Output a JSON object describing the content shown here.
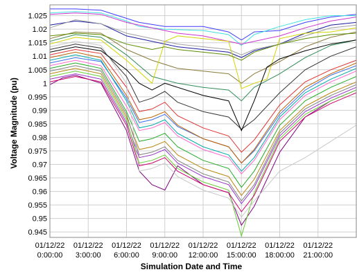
{
  "chart_data": {
    "type": "line",
    "xlabel": "Simulation Date and Time",
    "ylabel": "Voltage Magnitude (pu)",
    "x_ticks": [
      {
        "hour": 0,
        "date": "01/12/22",
        "time": "0:00:00"
      },
      {
        "hour": 3,
        "date": "01/12/22",
        "time": "3:00:00"
      },
      {
        "hour": 6,
        "date": "01/12/22",
        "time": "6:00:00"
      },
      {
        "hour": 9,
        "date": "01/12/22",
        "time": "9:00:00"
      },
      {
        "hour": 12,
        "date": "01/12/22",
        "time": "12:00:00"
      },
      {
        "hour": 15,
        "date": "01/12/22",
        "time": "15:00:00"
      },
      {
        "hour": 18,
        "date": "01/12/22",
        "time": "18:00:00"
      },
      {
        "hour": 21,
        "date": "01/12/22",
        "time": "21:00:00"
      }
    ],
    "xlim_hours": [
      0,
      24
    ],
    "y_ticks": [
      "0.945",
      "0.95",
      "0.955",
      "0.96",
      "0.965",
      "0.97",
      "0.975",
      "0.98",
      "0.985",
      "0.99",
      "0.995",
      "1",
      "1.005",
      "1.01",
      "1.015",
      "1.02",
      "1.025"
    ],
    "ylim": [
      0.943,
      1.029
    ],
    "grid": true,
    "x_unit": "hours",
    "series": [
      {
        "color": "#3d3dff",
        "x": [
          0,
          2,
          4,
          6,
          7,
          9,
          12,
          14,
          15,
          16,
          18,
          20,
          22,
          24
        ],
        "y": [
          1.0275,
          1.0275,
          1.027,
          1.024,
          1.0225,
          1.021,
          1.021,
          1.019,
          1.016,
          1.019,
          1.0195,
          1.0225,
          1.0245,
          1.0255
        ]
      },
      {
        "color": "#40e0e0",
        "x": [
          0,
          2,
          4,
          6,
          7,
          9,
          12,
          14,
          15,
          16,
          18,
          20,
          22,
          24
        ],
        "y": [
          1.026,
          1.0265,
          1.026,
          1.023,
          1.021,
          1.02,
          1.0195,
          1.018,
          1.014,
          1.018,
          1.021,
          1.0235,
          1.025,
          1.025
        ]
      },
      {
        "color": "#cc33cc",
        "x": [
          0,
          2,
          4,
          6,
          8,
          10,
          12,
          14,
          15,
          16,
          18,
          20,
          22,
          24
        ],
        "y": [
          1.0255,
          1.026,
          1.0255,
          1.0225,
          1.0205,
          1.0185,
          1.0175,
          1.0155,
          1.0145,
          1.0155,
          1.0175,
          1.0205,
          1.023,
          1.0245
        ]
      },
      {
        "color": "#1a1aa0",
        "x": [
          0,
          2,
          4,
          6,
          8,
          10,
          12,
          14,
          15,
          16,
          18,
          20,
          22,
          24
        ],
        "y": [
          1.0215,
          1.023,
          1.022,
          1.0175,
          1.0155,
          1.0135,
          1.0125,
          1.0115,
          1.0095,
          1.012,
          1.0145,
          1.0185,
          1.0215,
          1.0225
        ]
      },
      {
        "color": "#a0a0a0",
        "x": [
          0,
          2,
          4,
          6,
          8,
          10,
          12,
          14,
          15,
          16,
          18,
          20,
          22,
          24
        ],
        "y": [
          1.0205,
          1.0235,
          1.022,
          1.0185,
          1.0165,
          1.0145,
          1.0135,
          1.0125,
          1.0105,
          1.0125,
          1.0145,
          1.0175,
          1.0205,
          1.0215
        ]
      },
      {
        "color": "#8b7a3a",
        "x": [
          0,
          2,
          4,
          6,
          8,
          10,
          12,
          14,
          15,
          16,
          18,
          20,
          22,
          24
        ],
        "y": [
          1.0165,
          1.019,
          1.0185,
          1.0125,
          1.0085,
          1.0055,
          1.0045,
          1.0035,
          1.0,
          1.0035,
          1.008,
          1.0135,
          1.017,
          1.019
        ]
      },
      {
        "color": "#2e8b57",
        "x": [
          0,
          2,
          4,
          6,
          8,
          10,
          12,
          14,
          15,
          16,
          18,
          20,
          22,
          24
        ],
        "y": [
          1.0155,
          1.018,
          1.017,
          1.0105,
          1.0025,
          1.0,
          0.9985,
          0.9975,
          0.9935,
          0.9985,
          1.0035,
          1.0095,
          1.014,
          1.016
        ]
      },
      {
        "color": "#d4d400",
        "x": [
          0,
          2,
          4,
          6,
          8,
          9,
          10,
          12,
          14,
          15,
          16,
          17,
          18,
          20,
          22,
          24
        ],
        "y": [
          1.0145,
          1.017,
          1.016,
          1.0085,
          1.0,
          1.0155,
          1.0175,
          1.0165,
          1.0155,
          0.998,
          1.0,
          1.0015,
          1.0165,
          1.0185,
          1.019,
          1.0205
        ]
      },
      {
        "color": "#333333",
        "x": [
          0,
          2,
          4,
          6,
          7,
          8,
          9,
          10,
          12,
          14,
          15,
          16,
          18,
          20,
          22,
          24
        ],
        "y": [
          1.0125,
          1.0145,
          1.013,
          1.0025,
          0.993,
          0.9945,
          0.997,
          0.993,
          0.9895,
          0.9875,
          0.983,
          0.9865,
          0.9965,
          1.005,
          1.01,
          1.0135
        ]
      },
      {
        "color": "#e03030",
        "x": [
          0,
          2,
          4,
          6,
          7,
          8,
          9,
          10,
          12,
          14,
          15,
          16,
          18,
          20,
          22,
          24
        ],
        "y": [
          1.0105,
          1.0125,
          1.011,
          0.9985,
          0.9895,
          0.9905,
          0.993,
          0.988,
          0.9835,
          0.9805,
          0.9745,
          0.979,
          0.992,
          1.0005,
          1.005,
          1.0085
        ]
      },
      {
        "color": "#3a6ee8",
        "x": [
          0,
          2,
          4,
          6,
          7,
          8,
          9,
          10,
          12,
          14,
          15,
          16,
          18,
          20,
          22,
          24
        ],
        "y": [
          1.0075,
          1.0095,
          1.008,
          0.9945,
          0.9855,
          0.9865,
          0.9885,
          0.984,
          0.9795,
          0.9765,
          0.9705,
          0.975,
          0.9885,
          0.9975,
          1.003,
          1.0065
        ]
      },
      {
        "color": "#ff66cc",
        "x": [
          0,
          2,
          4,
          6,
          7,
          8,
          9,
          10,
          12,
          14,
          15,
          16,
          18,
          20,
          22,
          24
        ],
        "y": [
          1.0065,
          1.0085,
          1.0065,
          0.9915,
          0.9825,
          0.9835,
          0.9855,
          0.9805,
          0.9755,
          0.9725,
          0.9665,
          0.9715,
          0.9865,
          0.9955,
          1.0005,
          1.0045
        ]
      },
      {
        "color": "#22aa22",
        "x": [
          0,
          2,
          4,
          6,
          7,
          8,
          9,
          10,
          12,
          14,
          15,
          16,
          18,
          20,
          22,
          24
        ],
        "y": [
          1.0055,
          1.0075,
          1.0055,
          0.9895,
          0.9785,
          0.9795,
          0.9815,
          0.9765,
          0.9715,
          0.9685,
          0.9615,
          0.9675,
          0.9845,
          0.9935,
          0.9985,
          1.0025
        ]
      },
      {
        "color": "#b8860b",
        "x": [
          0,
          2,
          4,
          6,
          7,
          8,
          9,
          10,
          12,
          14,
          15,
          16,
          18,
          20,
          22,
          24
        ],
        "y": [
          1.0035,
          1.0055,
          1.0035,
          0.9875,
          0.9755,
          0.9765,
          0.9785,
          0.9735,
          0.9685,
          0.9655,
          0.9585,
          0.9645,
          0.9825,
          0.9915,
          0.9965,
          1.0005
        ]
      },
      {
        "color": "#9933cc",
        "x": [
          0,
          2,
          4,
          6,
          7,
          8,
          9,
          10,
          12,
          14,
          15,
          16,
          18,
          20,
          22,
          24
        ],
        "y": [
          1.0015,
          1.0035,
          1.0015,
          0.9855,
          0.9725,
          0.9735,
          0.9755,
          0.9705,
          0.9655,
          0.9625,
          0.9555,
          0.9615,
          0.9805,
          0.9895,
          0.9945,
          0.9985
        ]
      },
      {
        "color": "#7f7f7f",
        "x": [
          0,
          2,
          4,
          6,
          7,
          8,
          9,
          10,
          12,
          14,
          15,
          16,
          18,
          20,
          22,
          24
        ],
        "y": [
          1.0045,
          1.0065,
          1.0045,
          0.9885,
          0.9735,
          0.9745,
          0.9765,
          0.9715,
          0.9665,
          0.9635,
          0.9565,
          0.9625,
          0.9815,
          0.9905,
          0.9955,
          0.9995
        ]
      },
      {
        "color": "#00aaaa",
        "x": [
          0,
          2,
          4,
          6,
          7,
          8,
          9,
          10,
          12,
          14,
          15,
          16,
          18,
          20,
          22,
          24
        ],
        "y": [
          1.0085,
          1.0105,
          1.0085,
          0.9935,
          0.9835,
          0.9845,
          0.9865,
          0.9815,
          0.9765,
          0.9735,
          0.9675,
          0.9725,
          0.9875,
          0.9965,
          1.0015,
          1.0055
        ]
      },
      {
        "color": "#c06000",
        "x": [
          0,
          2,
          4,
          6,
          7,
          8,
          9,
          10,
          12,
          14,
          15,
          16,
          18,
          20,
          22,
          24
        ],
        "y": [
          1.0095,
          1.0115,
          1.0095,
          0.9955,
          0.9865,
          0.9875,
          0.9895,
          0.9845,
          0.9795,
          0.9765,
          0.9705,
          0.9755,
          0.9895,
          0.9985,
          1.0035,
          1.0075
        ]
      },
      {
        "color": "#800080",
        "x": [
          0,
          1,
          2,
          4,
          6,
          7,
          8,
          9,
          10,
          12,
          14,
          15,
          16,
          18,
          20,
          22,
          24
        ],
        "y": [
          0.9995,
          1.002,
          1.003,
          1.0,
          0.9825,
          0.9675,
          0.9625,
          0.9605,
          0.9695,
          0.9625,
          0.9595,
          0.9475,
          0.9545,
          0.9745,
          0.9875,
          0.9935,
          0.9975
        ]
      },
      {
        "color": "#66cc33",
        "x": [
          0,
          2,
          4,
          6,
          7,
          8,
          9,
          10,
          12,
          14,
          15,
          16,
          18,
          20,
          22,
          24
        ],
        "y": [
          1.0025,
          1.0045,
          1.0025,
          0.9865,
          0.9705,
          0.9715,
          0.9735,
          0.9685,
          0.9635,
          0.9605,
          0.9435,
          0.9595,
          0.9795,
          0.9885,
          0.9935,
          0.9975
        ]
      },
      {
        "color": "#cc0066",
        "x": [
          0,
          2,
          4,
          6,
          7,
          8,
          9,
          10,
          12,
          14,
          15,
          16,
          18,
          20,
          22,
          24
        ],
        "y": [
          1.0005,
          1.0025,
          1.0005,
          0.9845,
          0.9695,
          0.9705,
          0.9725,
          0.9675,
          0.9625,
          0.9595,
          0.9525,
          0.9585,
          0.9785,
          0.9875,
          0.9925,
          0.9965
        ]
      },
      {
        "color": "#c8c8c8",
        "x": [
          0,
          2,
          4,
          6,
          7,
          8,
          9,
          10,
          12,
          14,
          15,
          16,
          18,
          20,
          22,
          24
        ],
        "y": [
          1.0135,
          1.0155,
          1.014,
          1.0,
          0.9675,
          0.9685,
          0.9705,
          0.9655,
          0.9605,
          0.9575,
          0.9505,
          0.9565,
          0.9675,
          0.9725,
          0.9785,
          0.9845
        ]
      },
      {
        "color": "#000000",
        "x": [
          0,
          2,
          4,
          6,
          7,
          8,
          9,
          10,
          12,
          14,
          15,
          16,
          17,
          18,
          20,
          22,
          24
        ],
        "y": [
          1.0115,
          1.0135,
          1.012,
          1.005,
          1.0,
          0.9975,
          1.0,
          0.9985,
          0.9955,
          0.9935,
          0.9825,
          0.9935,
          1.006,
          1.009,
          1.012,
          1.0145,
          1.016
        ]
      },
      {
        "color": "#5b8c00",
        "x": [
          0,
          2,
          4,
          6,
          7,
          8,
          9,
          10,
          12,
          14,
          15,
          16,
          18,
          20,
          22,
          24
        ],
        "y": [
          1.0175,
          1.0185,
          1.018,
          1.0145,
          1.0135,
          1.0125,
          1.0135,
          1.0125,
          1.0115,
          1.0105,
          1.0085,
          1.0115,
          1.0145,
          1.0165,
          1.018,
          1.0185
        ]
      }
    ]
  }
}
